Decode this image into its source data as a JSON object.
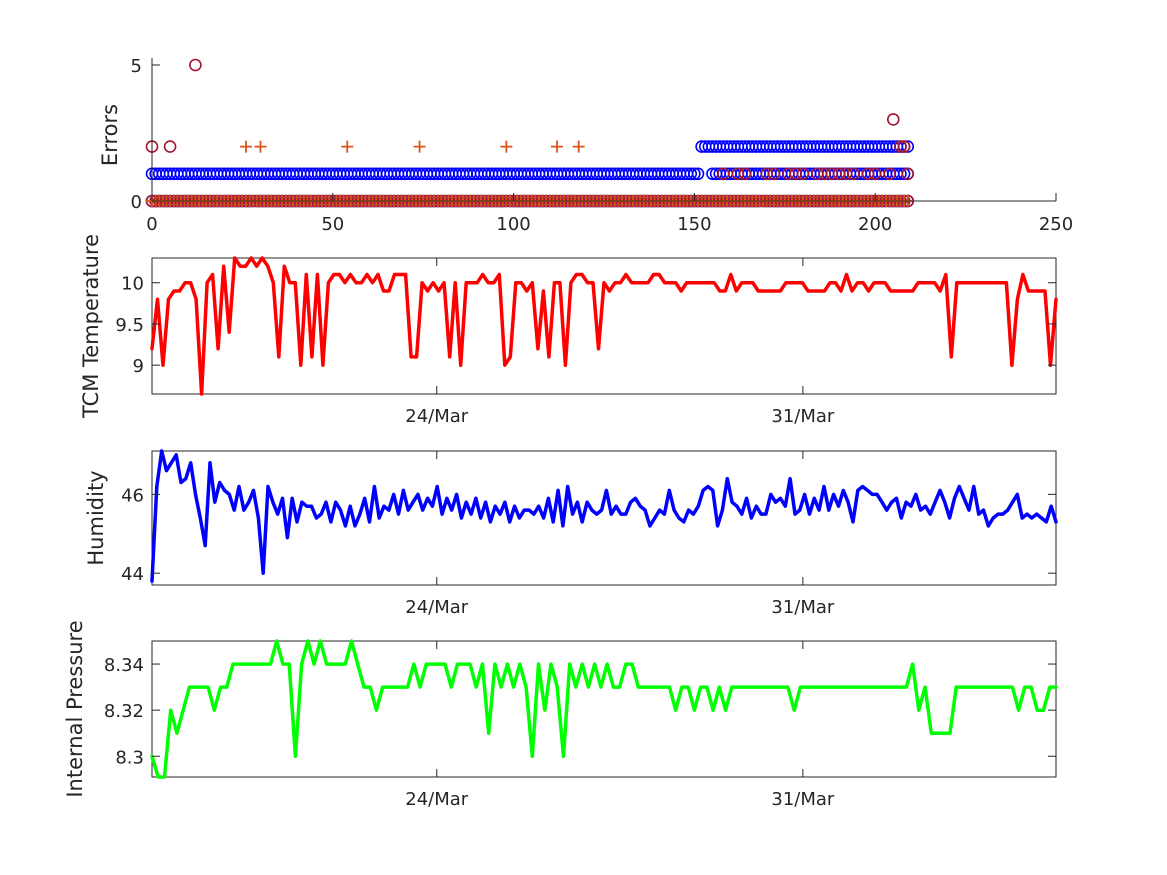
{
  "chart_data": [
    {
      "type": "scatter",
      "ylabel": "Errors",
      "xlim": [
        0,
        250
      ],
      "ylim": [
        0,
        5
      ],
      "xticks": [
        "0",
        "50",
        "100",
        "150",
        "200",
        "250"
      ],
      "yticks": [
        "0",
        "5"
      ],
      "grid": false,
      "series": [
        {
          "marker": "circle",
          "color": "#0000ff",
          "ranges": [
            {
              "y": 0,
              "x_from": 0,
              "x_to": 209
            },
            {
              "y": 1,
              "x_from": 0,
              "x_to": 151
            },
            {
              "y": 2,
              "x_from": 152,
              "x_to": 209
            },
            {
              "y": 1,
              "x_from": 155,
              "x_to": 209
            }
          ]
        },
        {
          "marker": "circle",
          "color": "#a2142f",
          "points": [
            [
              0,
              2
            ],
            [
              5,
              2
            ],
            [
              12,
              5
            ],
            [
              158,
              1
            ],
            [
              162,
              1
            ],
            [
              164,
              1
            ],
            [
              170,
              1
            ],
            [
              172,
              1
            ],
            [
              176,
              1
            ],
            [
              178,
              1
            ],
            [
              180,
              1
            ],
            [
              184,
              1
            ],
            [
              186,
              1
            ],
            [
              188,
              1
            ],
            [
              190,
              1
            ],
            [
              192,
              1
            ],
            [
              194,
              1
            ],
            [
              198,
              1
            ],
            [
              200,
              1
            ],
            [
              204,
              1
            ],
            [
              205,
              3
            ],
            [
              207,
              2
            ],
            [
              208,
              2
            ],
            [
              209,
              1
            ]
          ],
          "ranges": [
            {
              "y": 0,
              "x_from": 0,
              "x_to": 209
            }
          ]
        },
        {
          "marker": "plus",
          "color": "#d95319",
          "points": [
            [
              26,
              2
            ],
            [
              30,
              2
            ],
            [
              54,
              2
            ],
            [
              74,
              2
            ],
            [
              98,
              2
            ],
            [
              112,
              2
            ],
            [
              118,
              2
            ]
          ],
          "ranges": [
            {
              "y": 0,
              "x_from": 0,
              "x_to": 209
            }
          ]
        }
      ]
    },
    {
      "type": "line",
      "ylabel": "TCM Temperature",
      "color": "#ff0000",
      "x_start": "20/Mar",
      "x_end": "6/Apr",
      "xticks": [
        {
          "label": "24/Mar",
          "pos": 0.315
        },
        {
          "label": "31/Mar",
          "pos": 0.72
        }
      ],
      "ylim": [
        8.65,
        10.3
      ],
      "yticks": [
        "9",
        "9.5",
        "10"
      ],
      "values": [
        9.2,
        9.8,
        9.0,
        9.8,
        9.9,
        9.9,
        10.0,
        10.0,
        9.8,
        8.65,
        10.0,
        10.1,
        9.2,
        10.2,
        9.4,
        10.3,
        10.2,
        10.2,
        10.3,
        10.2,
        10.3,
        10.2,
        10.0,
        9.1,
        10.2,
        10.0,
        10.0,
        9.0,
        10.1,
        9.1,
        10.1,
        9.0,
        10.0,
        10.1,
        10.1,
        10.0,
        10.1,
        10.0,
        10.0,
        10.1,
        10.0,
        10.1,
        9.9,
        9.9,
        10.1,
        10.1,
        10.1,
        9.1,
        9.1,
        10.0,
        9.9,
        10.0,
        9.9,
        10.0,
        9.1,
        10.0,
        9.0,
        10.0,
        10.0,
        10.0,
        10.1,
        10.0,
        10.0,
        10.1,
        9.0,
        9.1,
        10.0,
        10.0,
        9.9,
        10.0,
        9.2,
        9.9,
        9.1,
        10.0,
        10.0,
        9.0,
        10.0,
        10.1,
        10.1,
        10.0,
        10.0,
        9.2,
        10.0,
        9.9,
        10.0,
        10.0,
        10.1,
        10.0,
        10.0,
        10.0,
        10.0,
        10.1,
        10.1,
        10.0,
        10.0,
        10.0,
        9.9,
        10.0,
        10.0,
        10.0,
        10.0,
        10.0,
        10.0,
        9.9,
        9.9,
        10.1,
        9.9,
        10.0,
        10.0,
        10.0,
        9.9,
        9.9,
        9.9,
        9.9,
        9.9,
        10.0,
        10.0,
        10.0,
        10.0,
        9.9,
        9.9,
        9.9,
        9.9,
        10.0,
        10.0,
        9.9,
        10.1,
        9.9,
        10.0,
        10.0,
        9.9,
        10.0,
        10.0,
        10.0,
        9.9,
        9.9,
        9.9,
        9.9,
        9.9,
        10.0,
        10.0,
        10.0,
        10.0,
        9.9,
        10.1,
        9.1,
        10.0,
        10.0,
        10.0,
        10.0,
        10.0,
        10.0,
        10.0,
        10.0,
        10.0,
        10.0,
        9.0,
        9.8,
        10.1,
        9.9,
        9.9,
        9.9,
        9.9,
        9.0,
        9.8
      ]
    },
    {
      "type": "line",
      "ylabel": "Humidity",
      "color": "#0000ff",
      "x_start": "20/Mar",
      "x_end": "6/Apr",
      "xticks": [
        {
          "label": "24/Mar",
          "pos": 0.315
        },
        {
          "label": "31/Mar",
          "pos": 0.72
        }
      ],
      "ylim": [
        43.7,
        47.1
      ],
      "yticks": [
        "44",
        "46"
      ],
      "values": [
        43.8,
        46.2,
        47.1,
        46.6,
        46.8,
        47.0,
        46.3,
        46.4,
        46.8,
        46.0,
        45.4,
        44.7,
        46.8,
        45.8,
        46.3,
        46.1,
        46.0,
        45.6,
        46.2,
        45.6,
        45.8,
        46.1,
        45.4,
        44.0,
        46.2,
        45.8,
        45.5,
        45.9,
        44.9,
        45.9,
        45.3,
        45.8,
        45.7,
        45.7,
        45.4,
        45.5,
        45.8,
        45.3,
        45.8,
        45.6,
        45.2,
        45.7,
        45.2,
        45.5,
        45.9,
        45.3,
        46.2,
        45.4,
        45.7,
        45.6,
        46.0,
        45.5,
        46.1,
        45.6,
        45.8,
        46.0,
        45.6,
        45.9,
        45.7,
        46.2,
        45.5,
        45.9,
        45.6,
        46.0,
        45.4,
        45.8,
        45.5,
        45.9,
        45.4,
        45.8,
        45.3,
        45.7,
        45.5,
        45.8,
        45.3,
        45.7,
        45.4,
        45.6,
        45.6,
        45.5,
        45.7,
        45.4,
        45.9,
        45.3,
        46.1,
        45.2,
        46.2,
        45.5,
        45.8,
        45.3,
        45.8,
        45.6,
        45.5,
        45.6,
        46.1,
        45.5,
        45.7,
        45.5,
        45.5,
        45.8,
        45.9,
        45.7,
        45.6,
        45.2,
        45.4,
        45.6,
        45.5,
        46.1,
        45.6,
        45.4,
        45.3,
        45.6,
        45.5,
        45.7,
        46.1,
        46.2,
        46.1,
        45.2,
        45.6,
        46.4,
        45.8,
        45.7,
        45.5,
        45.9,
        45.4,
        45.7,
        45.5,
        45.5,
        46.0,
        45.8,
        45.9,
        45.7,
        46.4,
        45.5,
        45.6,
        46.0,
        45.5,
        45.9,
        45.6,
        46.2,
        45.6,
        46.0,
        45.7,
        46.1,
        45.8,
        45.3,
        46.1,
        46.2,
        46.1,
        46.0,
        46.0,
        45.8,
        45.6,
        45.8,
        45.9,
        45.4,
        45.8,
        45.7,
        46.0,
        45.6,
        45.7,
        45.5,
        45.8,
        46.1,
        45.8,
        45.4,
        45.9,
        46.2,
        45.9,
        45.6,
        46.2,
        45.5,
        45.6,
        45.2,
        45.4,
        45.5,
        45.5,
        45.6,
        45.8,
        46.0,
        45.4,
        45.5,
        45.4,
        45.5,
        45.4,
        45.3,
        45.7,
        45.3
      ]
    },
    {
      "type": "line",
      "ylabel": "Internal Pressure",
      "color": "#00ff00",
      "x_start": "20/Mar",
      "x_end": "6/Apr",
      "xticks": [
        {
          "label": "24/Mar",
          "pos": 0.315
        },
        {
          "label": "31/Mar",
          "pos": 0.72
        }
      ],
      "ylim": [
        8.291,
        8.35
      ],
      "yticks": [
        "8.3",
        "8.32",
        "8.34"
      ],
      "values": [
        8.3,
        8.291,
        8.291,
        8.32,
        8.31,
        8.32,
        8.33,
        8.33,
        8.33,
        8.33,
        8.32,
        8.33,
        8.33,
        8.34,
        8.34,
        8.34,
        8.34,
        8.34,
        8.34,
        8.34,
        8.35,
        8.34,
        8.34,
        8.3,
        8.34,
        8.35,
        8.34,
        8.35,
        8.34,
        8.34,
        8.34,
        8.34,
        8.35,
        8.34,
        8.33,
        8.33,
        8.32,
        8.33,
        8.33,
        8.33,
        8.33,
        8.33,
        8.34,
        8.33,
        8.34,
        8.34,
        8.34,
        8.34,
        8.33,
        8.34,
        8.34,
        8.34,
        8.33,
        8.34,
        8.31,
        8.34,
        8.33,
        8.34,
        8.33,
        8.34,
        8.33,
        8.3,
        8.34,
        8.32,
        8.34,
        8.33,
        8.3,
        8.34,
        8.33,
        8.34,
        8.33,
        8.34,
        8.33,
        8.34,
        8.33,
        8.33,
        8.34,
        8.34,
        8.33,
        8.33,
        8.33,
        8.33,
        8.33,
        8.33,
        8.32,
        8.33,
        8.33,
        8.32,
        8.33,
        8.33,
        8.32,
        8.33,
        8.32,
        8.33,
        8.33,
        8.33,
        8.33,
        8.33,
        8.33,
        8.33,
        8.33,
        8.33,
        8.33,
        8.32,
        8.33,
        8.33,
        8.33,
        8.33,
        8.33,
        8.33,
        8.33,
        8.33,
        8.33,
        8.33,
        8.33,
        8.33,
        8.33,
        8.33,
        8.33,
        8.33,
        8.33,
        8.33,
        8.34,
        8.32,
        8.33,
        8.31,
        8.31,
        8.31,
        8.31,
        8.33,
        8.33,
        8.33,
        8.33,
        8.33,
        8.33,
        8.33,
        8.33,
        8.33,
        8.33,
        8.32,
        8.33,
        8.33,
        8.32,
        8.32,
        8.33,
        8.33
      ]
    }
  ]
}
